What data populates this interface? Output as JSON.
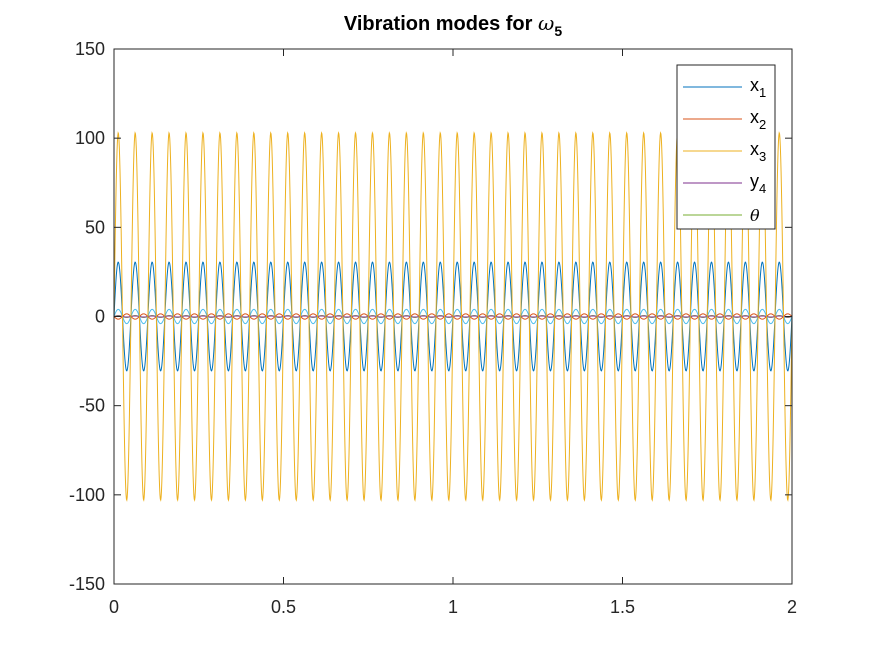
{
  "chart_data": {
    "type": "line",
    "title": {
      "text": "Vibration modes for ",
      "symbol": "ω",
      "symbol_subscript": "5"
    },
    "xlabel": "",
    "ylabel": "",
    "xlim": [
      0,
      2
    ],
    "ylim": [
      -150,
      150
    ],
    "x_ticks": [
      0,
      0.5,
      1,
      1.5,
      2
    ],
    "x_tick_labels": [
      "0",
      "0.5",
      "1",
      "1.5",
      "2"
    ],
    "y_ticks": [
      -150,
      -100,
      -50,
      0,
      50,
      100,
      150
    ],
    "y_tick_labels": [
      "-150",
      "-100",
      "-50",
      "0",
      "50",
      "100",
      "150"
    ],
    "grid": false,
    "legend_position": "top-right",
    "frequency_cycles_per_unit": 20,
    "series": [
      {
        "name": "x",
        "subscript": "1",
        "amplitude": 30.5,
        "phase": 0,
        "color": "#0072BD"
      },
      {
        "name": "x",
        "subscript": "2",
        "amplitude": 1.5,
        "phase": 180,
        "color": "#D95319"
      },
      {
        "name": "x",
        "subscript": "3",
        "amplitude": 103,
        "phase": 0,
        "color": "#EDB120"
      },
      {
        "name": "y",
        "subscript": "4",
        "amplitude": 0.3,
        "phase": 0,
        "color": "#7E2F8E"
      },
      {
        "name": "θ",
        "subscript": "",
        "amplitude": 0.5,
        "phase": 0,
        "color": "#77AC30"
      },
      {
        "name": "",
        "subscript": "",
        "amplitude": 4,
        "phase": 0,
        "color": "#4DBEEE"
      }
    ]
  }
}
